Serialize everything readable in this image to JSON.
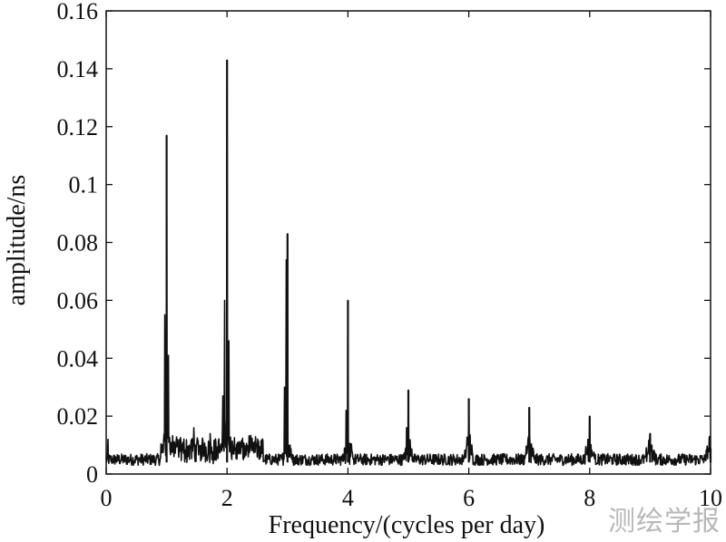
{
  "chart_data": {
    "type": "line",
    "xlabel": "Frequency/(cycles per day)",
    "ylabel": "amplitude/ns",
    "xlim": [
      0,
      10
    ],
    "ylim": [
      0,
      0.16
    ],
    "x_ticks": [
      0,
      2,
      4,
      6,
      8,
      10
    ],
    "x_tick_labels": [
      "0",
      "2",
      "4",
      "6",
      "8",
      "10"
    ],
    "y_ticks": [
      0,
      0.02,
      0.04,
      0.06,
      0.08,
      0.1,
      0.12,
      0.14,
      0.16
    ],
    "y_tick_labels": [
      "0",
      "0.02",
      "0.04",
      "0.06",
      "0.08",
      "0.1",
      "0.12",
      "0.14",
      "0.16"
    ],
    "grid": false,
    "line_color": "#111111",
    "peaks": [
      {
        "x": 1.0,
        "y": 0.117
      },
      {
        "x": 2.0,
        "y": 0.143
      },
      {
        "x": 3.0,
        "y": 0.083
      },
      {
        "x": 4.0,
        "y": 0.06
      },
      {
        "x": 5.0,
        "y": 0.029
      },
      {
        "x": 6.0,
        "y": 0.026
      },
      {
        "x": 7.0,
        "y": 0.023
      },
      {
        "x": 8.0,
        "y": 0.02
      },
      {
        "x": 9.0,
        "y": 0.014
      },
      {
        "x": 10.0,
        "y": 0.009
      }
    ],
    "side_peaks": [
      {
        "x": 0.97,
        "y": 0.055
      },
      {
        "x": 1.03,
        "y": 0.041
      },
      {
        "x": 1.96,
        "y": 0.06
      },
      {
        "x": 2.03,
        "y": 0.046
      },
      {
        "x": 1.93,
        "y": 0.027
      },
      {
        "x": 2.98,
        "y": 0.074
      },
      {
        "x": 2.95,
        "y": 0.03
      },
      {
        "x": 3.97,
        "y": 0.022
      },
      {
        "x": 4.97,
        "y": 0.016
      },
      {
        "x": 5.98,
        "y": 0.01
      },
      {
        "x": 6.98,
        "y": 0.012
      },
      {
        "x": 7.97,
        "y": 0.012
      },
      {
        "x": 0.03,
        "y": 0.012
      },
      {
        "x": 1.45,
        "y": 0.016
      },
      {
        "x": 1.72,
        "y": 0.014
      }
    ],
    "noise_floor": 0.003
  },
  "watermark": "测绘学报"
}
